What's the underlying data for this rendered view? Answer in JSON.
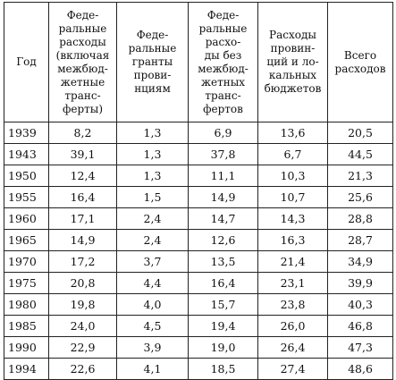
{
  "table": {
    "headers": [
      "Год",
      "Феде-\nральные\nрасходы\n(включая\nмежбюд-\nжетные\nтранс-\nферты)",
      "Феде-\nральные\nгранты\nпрови-\nнциям",
      "Феде-\nральные\nрасхо-\nды без\nмежбюд-\nжетных\nтранс-\nфертов",
      "Расходы\nпровин-\nций и ло-\nкальных\nбюджетов",
      "Всего\nрасходов"
    ],
    "rows": [
      [
        "1939",
        "8,2",
        "1,3",
        "6,9",
        "13,6",
        "20,5"
      ],
      [
        "1943",
        "39,1",
        "1,3",
        "37,8",
        "6,7",
        "44,5"
      ],
      [
        "1950",
        "12,4",
        "1,3",
        "11,1",
        "10,3",
        "21,3"
      ],
      [
        "1955",
        "16,4",
        "1,5",
        "14,9",
        "10,7",
        "25,6"
      ],
      [
        "1960",
        "17,1",
        "2,4",
        "14,7",
        "14,3",
        "28,8"
      ],
      [
        "1965",
        "14,9",
        "2,4",
        "12,6",
        "16,3",
        "28,7"
      ],
      [
        "1970",
        "17,2",
        "3,7",
        "13,5",
        "21,4",
        "34,9"
      ],
      [
        "1975",
        "20,8",
        "4,4",
        "16,4",
        "23,1",
        "39,9"
      ],
      [
        "1980",
        "19,8",
        "4,0",
        "15,7",
        "23,8",
        "40,3"
      ],
      [
        "1985",
        "24,0",
        "4,5",
        "19,4",
        "26,0",
        "46,8"
      ],
      [
        "1990",
        "22,9",
        "3,9",
        "19,0",
        "26,4",
        "47,3"
      ],
      [
        "1994",
        "22,6",
        "4,1",
        "18,5",
        "27,4",
        "48,6"
      ]
    ]
  }
}
